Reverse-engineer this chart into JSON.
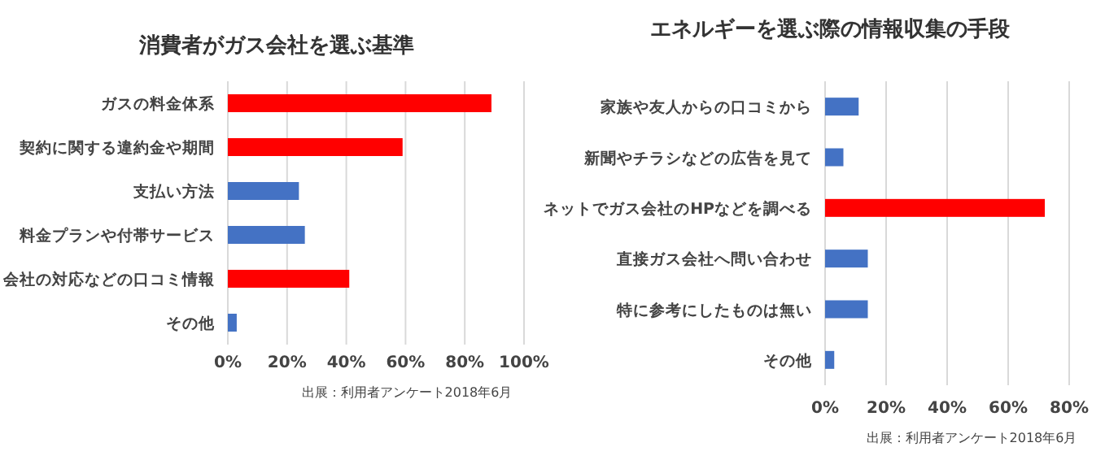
{
  "chart_data": [
    {
      "type": "bar",
      "orientation": "horizontal",
      "title": "消費者がガス会社を選ぶ基準",
      "categories": [
        "ガスの料金体系",
        "契約に関する違約金や期間",
        "支払い方法",
        "料金プランや付帯サービス",
        "会社の対応などの口コミ情報",
        "その他"
      ],
      "values": [
        89,
        59,
        24,
        26,
        41,
        3
      ],
      "colors": [
        "#ff0000",
        "#ff0000",
        "#4472c4",
        "#4472c4",
        "#ff0000",
        "#4472c4"
      ],
      "xlim": [
        0,
        100
      ],
      "xticks": [
        {
          "value": 0,
          "label": "0%"
        },
        {
          "value": 20,
          "label": "20%"
        },
        {
          "value": 40,
          "label": "40%"
        },
        {
          "value": 60,
          "label": "60%"
        },
        {
          "value": 80,
          "label": "80%"
        },
        {
          "value": 100,
          "label": "100%"
        }
      ],
      "grid": "x",
      "annotations": [
        "出展：利用者アンケート2018年6月"
      ]
    },
    {
      "type": "bar",
      "orientation": "horizontal",
      "title": "エネルギーを選ぶ際の情報収集の手段",
      "categories": [
        "家族や友人からの口コミから",
        "新聞やチラシなどの広告を見て",
        "ネットでガス会社のHPなどを調べる",
        "直接ガス会社へ問い合わせ",
        "特に参考にしたものは無い",
        "その他"
      ],
      "values": [
        11,
        6,
        72,
        14,
        14,
        3
      ],
      "colors": [
        "#4472c4",
        "#4472c4",
        "#ff0000",
        "#4472c4",
        "#4472c4",
        "#4472c4"
      ],
      "xlim": [
        0,
        80
      ],
      "xticks": [
        {
          "value": 0,
          "label": "0%"
        },
        {
          "value": 20,
          "label": "20%"
        },
        {
          "value": 40,
          "label": "40%"
        },
        {
          "value": 60,
          "label": "60%"
        },
        {
          "value": 80,
          "label": "80%"
        }
      ],
      "grid": "x",
      "annotations": [
        "出展：利用者アンケート2018年6月"
      ]
    }
  ]
}
